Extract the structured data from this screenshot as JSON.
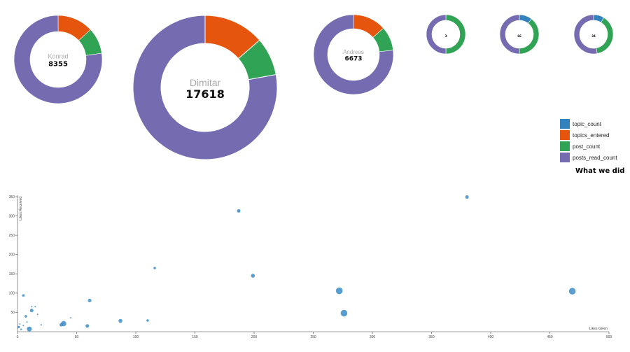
{
  "colors": {
    "topic_count": "#3182bd",
    "topics_entered": "#e6550d",
    "post_count": "#31a354",
    "posts_read_count": "#756bb1",
    "dot": "#3c8dc8"
  },
  "legend": {
    "items": [
      {
        "key": "topic_count",
        "label": "topic_count"
      },
      {
        "key": "topics_entered",
        "label": "topics_entered"
      },
      {
        "key": "post_count",
        "label": "post_count"
      },
      {
        "key": "posts_read_count",
        "label": "posts_read_count"
      }
    ],
    "title": "What we did"
  },
  "chart_data": [
    {
      "type": "pie",
      "variant": "donut",
      "users": [
        {
          "name": "Konrad",
          "total": "8355",
          "slices": {
            "topic_count": 0,
            "topics_entered": 1100,
            "post_count": 800,
            "posts_read_count": 6455
          }
        },
        {
          "name": "Dimitar",
          "total": "17618",
          "slices": {
            "topic_count": 0,
            "topics_entered": 2400,
            "post_count": 1500,
            "posts_read_count": 13718
          }
        },
        {
          "name": "Andreas",
          "total": "6673",
          "slices": {
            "topic_count": 0,
            "topics_entered": 900,
            "post_count": 650,
            "posts_read_count": 5123
          }
        },
        {
          "name": "",
          "total": "3",
          "slices": {
            "topic_count": 0,
            "topics_entered": 0,
            "post_count": 1.5,
            "posts_read_count": 1.5
          }
        },
        {
          "name": "",
          "total": "66",
          "slices": {
            "topic_count": 7,
            "topics_entered": 0,
            "post_count": 26,
            "posts_read_count": 33
          }
        },
        {
          "name": "",
          "total": "34",
          "slices": {
            "topic_count": 3,
            "topics_entered": 0,
            "post_count": 13,
            "posts_read_count": 18
          }
        }
      ]
    },
    {
      "type": "scatter",
      "xlabel": "Likes Given",
      "ylabel": "Likes Received",
      "xlim": [
        0,
        500
      ],
      "ylim": [
        0,
        350
      ],
      "xticks": [
        0,
        50,
        100,
        150,
        200,
        250,
        300,
        350,
        400,
        450,
        500
      ],
      "yticks": [
        50,
        100,
        150,
        200,
        250,
        300,
        350
      ],
      "points": [
        {
          "x": 380,
          "y": 349,
          "r": 2.5
        },
        {
          "x": 187,
          "y": 313,
          "r": 2.5
        },
        {
          "x": 116,
          "y": 165,
          "r": 1.8
        },
        {
          "x": 199,
          "y": 145,
          "r": 2.8
        },
        {
          "x": 272,
          "y": 106,
          "r": 4.8
        },
        {
          "x": 469,
          "y": 105,
          "r": 4.8
        },
        {
          "x": 5,
          "y": 94,
          "r": 1.8
        },
        {
          "x": 61,
          "y": 81,
          "r": 2.5
        },
        {
          "x": 12,
          "y": 65,
          "r": 1
        },
        {
          "x": 15,
          "y": 65,
          "r": 1
        },
        {
          "x": 12,
          "y": 55,
          "r": 2.5
        },
        {
          "x": 276,
          "y": 48,
          "r": 4.8
        },
        {
          "x": 17,
          "y": 45,
          "r": 1
        },
        {
          "x": 7,
          "y": 40,
          "r": 1.8
        },
        {
          "x": 45,
          "y": 36,
          "r": 1
        },
        {
          "x": 87,
          "y": 28,
          "r": 2.8
        },
        {
          "x": 110,
          "y": 29,
          "r": 1.8
        },
        {
          "x": 8,
          "y": 25,
          "r": 1
        },
        {
          "x": 2,
          "y": 20,
          "r": 1
        },
        {
          "x": 39,
          "y": 21,
          "r": 3.8
        },
        {
          "x": 37,
          "y": 18,
          "r": 2.5
        },
        {
          "x": 20,
          "y": 18,
          "r": 1
        },
        {
          "x": 5,
          "y": 16,
          "r": 1
        },
        {
          "x": 59,
          "y": 15,
          "r": 2.5
        },
        {
          "x": 1,
          "y": 12,
          "r": 1.8
        },
        {
          "x": 10,
          "y": 7,
          "r": 3.5
        },
        {
          "x": 3,
          "y": 6,
          "r": 1.2
        }
      ]
    }
  ]
}
